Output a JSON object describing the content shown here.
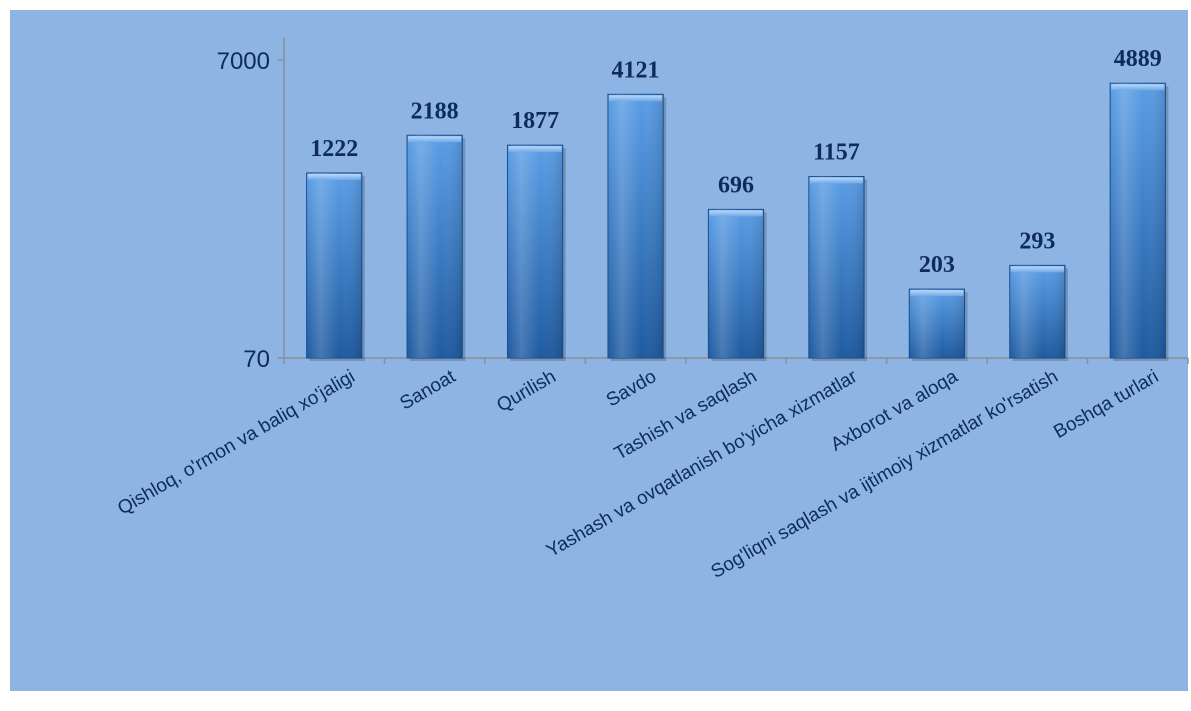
{
  "chart_data": {
    "type": "bar",
    "scale": "log",
    "categories": [
      "Qishloq, o'rmon va baliq xo'jaligi",
      "Sanoat",
      "Qurilish",
      "Savdo",
      "Tashish va saqlash",
      "Yashash va ovqatlanish bo'yicha xizmatlar",
      "Axborot va aloqa",
      "Sog'liqni saqlash va ijtimoiy xizmatlar ko'rsatish",
      "Boshqa turlari"
    ],
    "values": [
      1222,
      2188,
      1877,
      4121,
      696,
      1157,
      203,
      293,
      4889
    ],
    "data_labels": [
      "1222",
      "2188",
      "1877",
      "4121",
      "696",
      "1157",
      "203",
      "293",
      "4889"
    ],
    "ylim": [
      70,
      7000
    ],
    "yticks": [
      "70",
      "7000"
    ],
    "title": "",
    "xlabel": "",
    "ylabel": "",
    "legend": "none",
    "grid": false
  },
  "colors": {
    "background": "#8db4e2",
    "bar_top": "#5b9ee6",
    "bar_bottom": "#1e5aa0",
    "bar_outline": "#1a4f8f",
    "text": "#0f2b5b",
    "axis": "#8a8f99"
  }
}
